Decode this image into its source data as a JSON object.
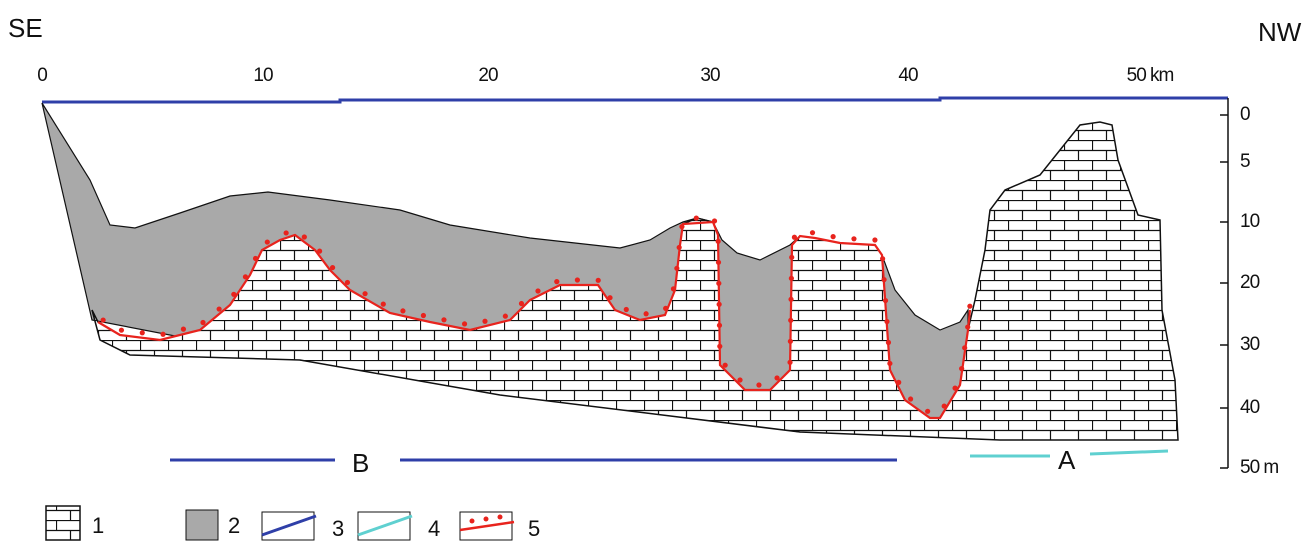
{
  "header": {
    "left": "SE",
    "right": "NW"
  },
  "distance_labels": [
    "0",
    "10",
    "20",
    "30",
    "40",
    "50 km"
  ],
  "depth_labels": [
    "0",
    "5",
    "10",
    "20",
    "30",
    "40",
    "50 m"
  ],
  "sections": {
    "b": "B",
    "a": "A"
  },
  "legend": [
    "1",
    "2",
    "3",
    "4",
    "5"
  ]
}
